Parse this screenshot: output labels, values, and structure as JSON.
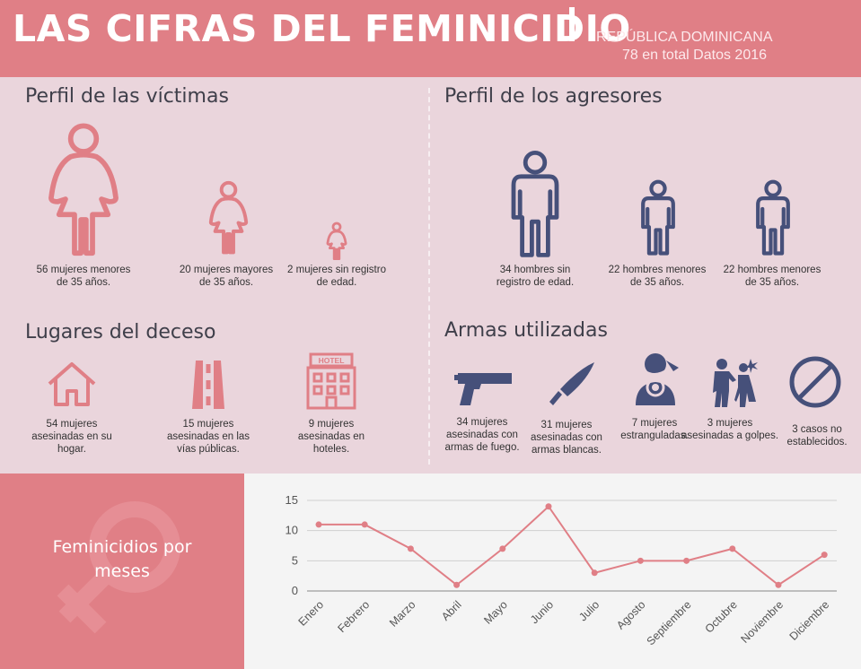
{
  "header": {
    "title": "LAS CIFRAS DEL FEMINICIDIO",
    "country": "REPÚBLICA DOMINICANA",
    "subtitle": "78 en total Datos 2016"
  },
  "colors": {
    "accent": "#e07f86",
    "navy": "#46507a",
    "panel": "#ead5dc"
  },
  "victims": {
    "title": "Perfil de las víctimas",
    "items": [
      {
        "icon": "woman-icon",
        "text": "56 mujeres menores de 35 años."
      },
      {
        "icon": "woman-icon",
        "text": "20 mujeres mayores de 35 años."
      },
      {
        "icon": "woman-icon",
        "text": "2 mujeres sin registro de edad."
      }
    ]
  },
  "aggressors": {
    "title": "Perfil de los agresores",
    "items": [
      {
        "icon": "man-icon",
        "text": "34 hombres sin registro de edad."
      },
      {
        "icon": "man-icon",
        "text": "22 hombres menores de 35 años."
      },
      {
        "icon": "man-icon",
        "text": "22 hombres menores de 35 años."
      }
    ]
  },
  "places": {
    "title": "Lugares del deceso",
    "hotel_sign": "HOTEL",
    "items": [
      {
        "icon": "house-icon",
        "text": "54 mujeres asesinadas en su hogar."
      },
      {
        "icon": "road-icon",
        "text": "15 mujeres asesinadas en las vías públicas."
      },
      {
        "icon": "hotel-icon",
        "text": "9 mujeres asesinadas en hoteles."
      }
    ]
  },
  "weapons": {
    "title": "Armas utilizadas",
    "items": [
      {
        "icon": "gun-icon",
        "text": "34 mujeres asesinadas con armas de fuego."
      },
      {
        "icon": "knife-icon",
        "text": "31 mujeres asesinadas con armas blancas."
      },
      {
        "icon": "strangle-icon",
        "text": "7 mujeres estranguladas."
      },
      {
        "icon": "beating-icon",
        "text": "3 mujeres asesinadas a golpes."
      },
      {
        "icon": "prohibited-icon",
        "text": "3 casos no establecidos."
      }
    ]
  },
  "monthly_label": "Feminicidios por meses",
  "chart_data": {
    "type": "line",
    "categories": [
      "Enero",
      "Febrero",
      "Marzo",
      "Abril",
      "Mayo",
      "Junio",
      "Julio",
      "Agosto",
      "Septiembre",
      "Octubre",
      "Noviembre",
      "Diciembre"
    ],
    "series": [
      {
        "values": [
          11,
          11,
          7,
          1,
          7,
          14,
          3,
          5,
          5,
          7,
          1,
          6
        ]
      }
    ],
    "yticks": [
      0,
      5,
      10,
      15
    ],
    "ylim": [
      0,
      15
    ],
    "grid": true,
    "color": "#e07f86"
  }
}
